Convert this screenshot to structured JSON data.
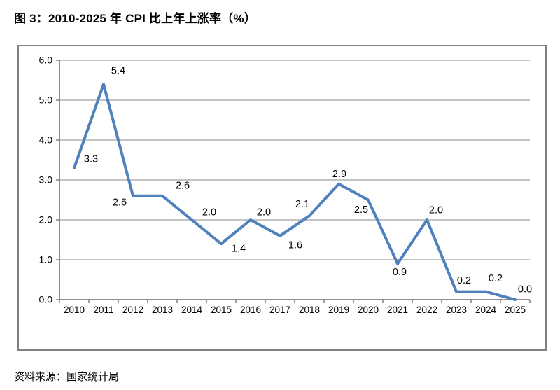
{
  "title": "图 3：2010-2025 年 CPI 比上年上涨率（%）",
  "source": "资料来源：国家统计局",
  "chart_data": {
    "type": "line",
    "title": "图 3：2010-2025 年 CPI 比上年上涨率（%）",
    "categories": [
      "2010",
      "2011",
      "2012",
      "2013",
      "2014",
      "2015",
      "2016",
      "2017",
      "2018",
      "2019",
      "2020",
      "2021",
      "2022",
      "2023",
      "2024",
      "2025"
    ],
    "values": [
      3.3,
      5.4,
      2.6,
      2.6,
      2.0,
      1.4,
      2.0,
      1.6,
      2.1,
      2.9,
      2.5,
      0.9,
      2.0,
      0.2,
      0.2,
      0.0
    ],
    "point_labels": [
      "3.3",
      "5.4",
      "2.6",
      "2.6",
      "2.0",
      "1.4",
      "2.0",
      "1.6",
      "2.1",
      "2.9",
      "2.5",
      "0.9",
      "2.0",
      "0.2",
      "0.2",
      "0.0"
    ],
    "ytick_labels": [
      "6.0",
      "5.0",
      "4.0",
      "3.0",
      "2.0",
      "1.0",
      "0.0"
    ],
    "ylim": [
      0.0,
      6.0
    ],
    "ytick_step": 1.0,
    "xlabel": "",
    "ylabel": "",
    "grid": true,
    "legend_position": "none",
    "colors": {
      "line": "#4F81BD",
      "grid": "#8a8a8a",
      "axis": "#7f7f7f",
      "text": "#000000",
      "border": "#808080",
      "background": "#ffffff"
    }
  }
}
